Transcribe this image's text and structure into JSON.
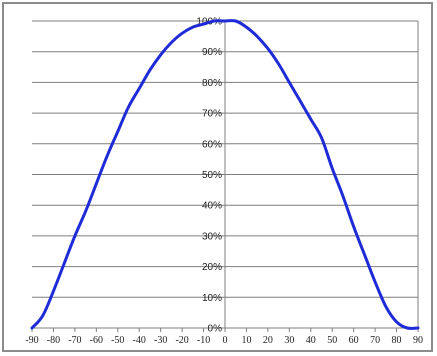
{
  "chart_data": {
    "type": "line",
    "title": "",
    "xlabel": "",
    "ylabel": "",
    "xlim": [
      -90,
      90
    ],
    "ylim": [
      0,
      100
    ],
    "grid": "horizontal",
    "colors": {
      "series": "#1f2bd6",
      "grid": "#7f7f7f",
      "axis": "#7f7f7f"
    },
    "x_ticks": [
      "-90",
      "-80",
      "-70",
      "-60",
      "-50",
      "-40",
      "-30",
      "-20",
      "-10",
      "0",
      "10",
      "20",
      "30",
      "40",
      "50",
      "60",
      "70",
      "80",
      "90"
    ],
    "y_ticks": [
      "0%",
      "10%",
      "20%",
      "30%",
      "40%",
      "50%",
      "60%",
      "70%",
      "80%",
      "90%",
      "100%"
    ],
    "series": [
      {
        "x": [
          -90,
          -85,
          -80,
          -75,
          -70,
          -65,
          -60,
          -55,
          -50,
          -45,
          -40,
          -35,
          -30,
          -25,
          -20,
          -15,
          -10,
          -5,
          0,
          5,
          10,
          15,
          20,
          25,
          30,
          35,
          40,
          45,
          50,
          55,
          60,
          65,
          70,
          75,
          80,
          85,
          90
        ],
        "values": [
          0,
          4,
          12,
          21,
          30,
          38,
          47,
          56,
          64,
          72,
          78,
          84,
          89,
          93,
          96,
          98,
          99,
          100,
          100,
          100,
          98,
          95,
          91,
          86,
          80,
          74,
          68,
          62,
          52,
          43,
          33,
          24,
          15,
          7,
          2,
          0,
          0
        ]
      }
    ]
  }
}
